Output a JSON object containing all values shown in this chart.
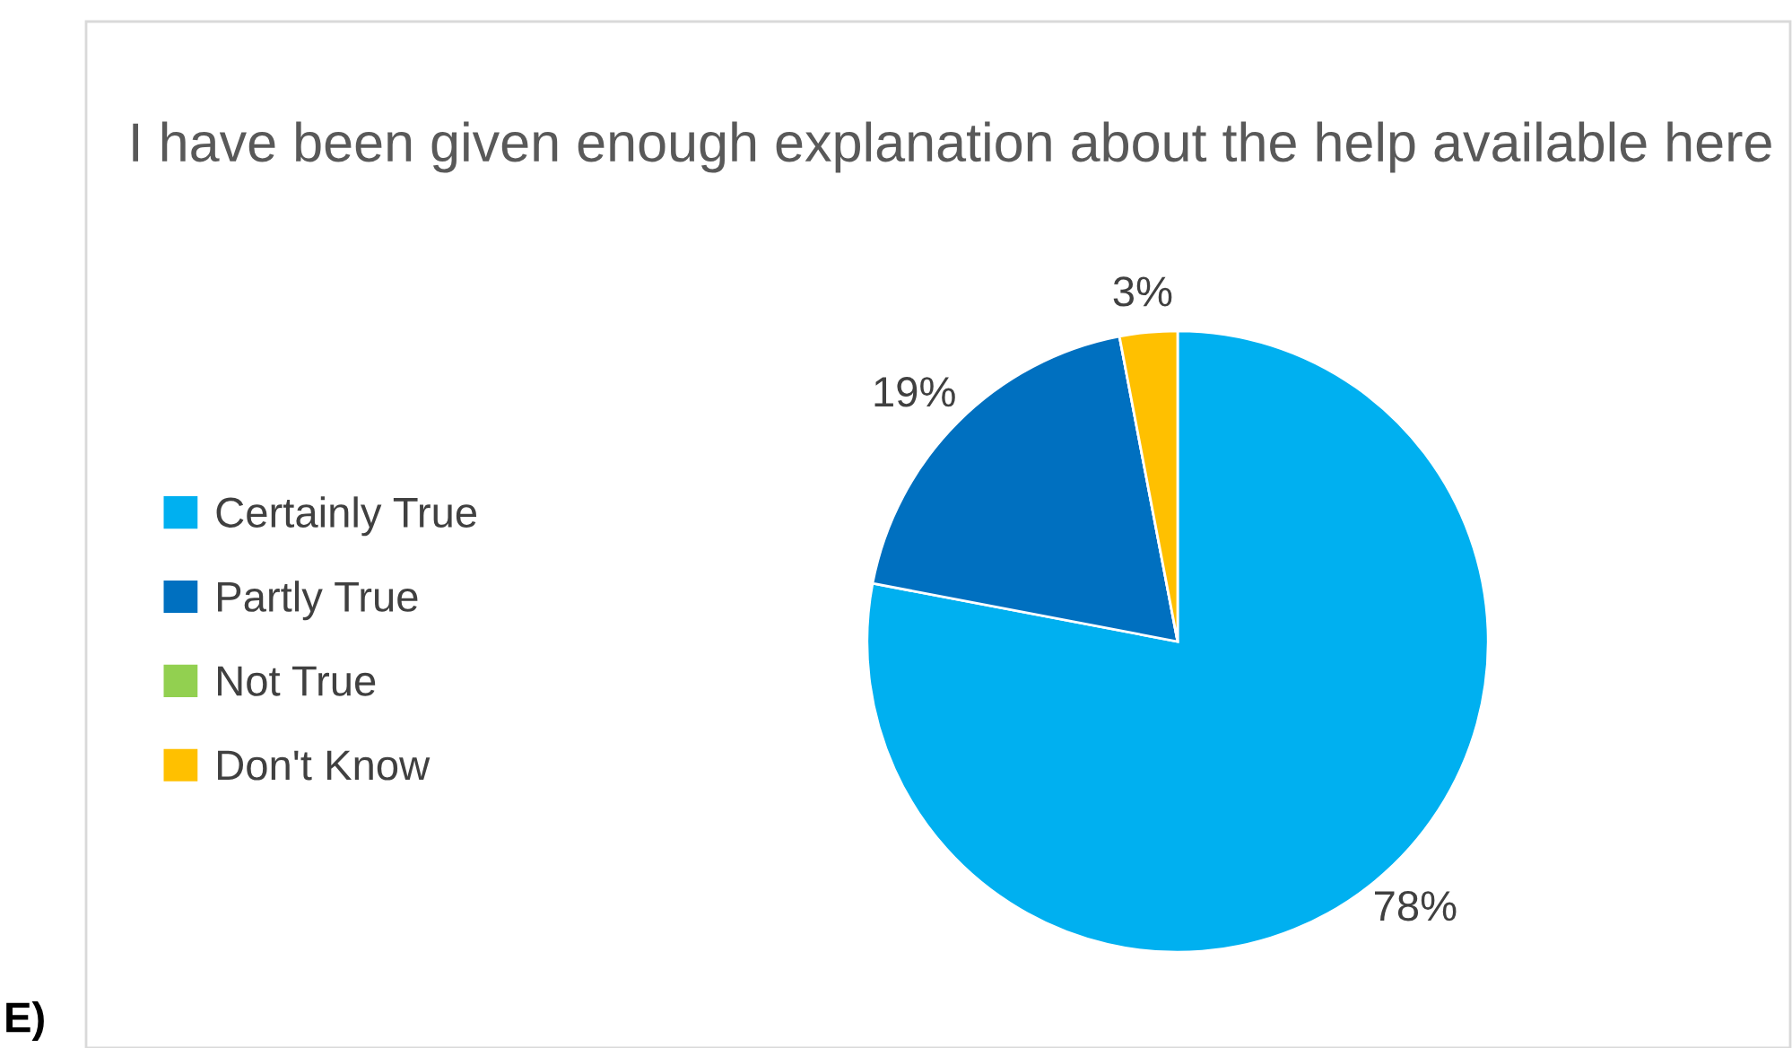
{
  "chart_data": {
    "type": "pie",
    "title": "I have been given enough explanation about the help available here",
    "categories": [
      "Certainly True",
      "Partly True",
      "Not True",
      "Don't Know"
    ],
    "values": [
      78,
      19,
      0,
      3
    ],
    "colors": [
      "#00b0f0",
      "#0070c0",
      "#92d050",
      "#ffc000"
    ],
    "value_labels": [
      "78%",
      "19%",
      null,
      "3%"
    ],
    "legend": "left",
    "annotations": [
      "E)"
    ]
  }
}
